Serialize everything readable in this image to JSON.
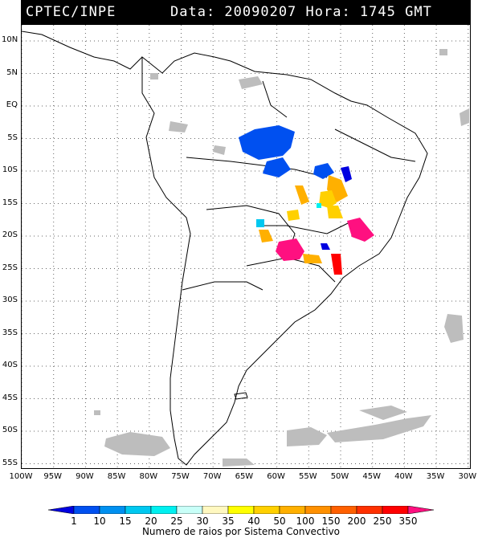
{
  "header": {
    "org": "CPTEC/INPE",
    "datetime": "Data: 20090207 Hora: 1745 GMT"
  },
  "lat_labels": [
    "10N",
    "5N",
    "EQ",
    "5S",
    "10S",
    "15S",
    "20S",
    "25S",
    "30S",
    "35S",
    "40S",
    "45S",
    "50S",
    "55S"
  ],
  "lon_labels": [
    "100W",
    "95W",
    "90W",
    "85W",
    "80W",
    "75W",
    "70W",
    "65W",
    "60W",
    "55W",
    "50W",
    "45W",
    "40W",
    "35W",
    "30W"
  ],
  "legend": {
    "labels": [
      "1",
      "10",
      "15",
      "20",
      "25",
      "30",
      "35",
      "40",
      "50",
      "100",
      "150",
      "200",
      "250",
      "350"
    ],
    "colors": [
      "#0000e0",
      "#0050f0",
      "#0090f0",
      "#00c8f0",
      "#00f0f0",
      "#c8fff8",
      "#fff8c0",
      "#ffff00",
      "#ffd000",
      "#ffb000",
      "#ff9000",
      "#ff6000",
      "#ff3000",
      "#ff0000",
      "#ff1080"
    ],
    "caption": "Numero de raios por Sistema Convectivo"
  },
  "colors": {
    "cloud": "#bdbdbd",
    "coast": "#000000",
    "grid": "#666666"
  }
}
